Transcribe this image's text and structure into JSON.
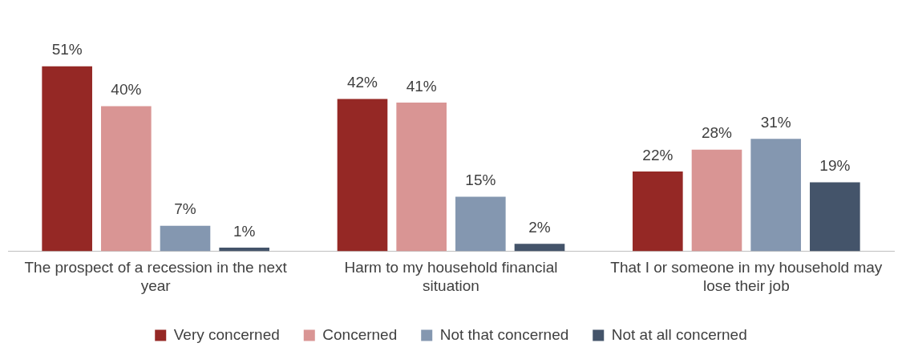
{
  "chart_data": {
    "type": "bar",
    "categories": [
      "The prospect of a recession in the next year",
      "Harm to my household financial situation",
      "That I or someone in my household may lose their job"
    ],
    "series": [
      {
        "name": "Very concerned",
        "color": "#952825",
        "values": [
          51,
          42,
          22
        ],
        "value_labels": [
          "51%",
          "42%",
          "22%"
        ]
      },
      {
        "name": "Concerned",
        "color": "#d99594",
        "values": [
          40,
          41,
          28
        ],
        "value_labels": [
          "40%",
          "41%",
          "28%"
        ]
      },
      {
        "name": "Not that concerned",
        "color": "#8497b0",
        "values": [
          7,
          15,
          31
        ],
        "value_labels": [
          "7%",
          "15%",
          "31%"
        ]
      },
      {
        "name": "Not at all concerned",
        "color": "#44546a",
        "values": [
          1,
          2,
          19
        ],
        "value_labels": [
          "1%",
          "2%",
          "19%"
        ]
      }
    ],
    "legend": "bottom",
    "grid": false
  }
}
